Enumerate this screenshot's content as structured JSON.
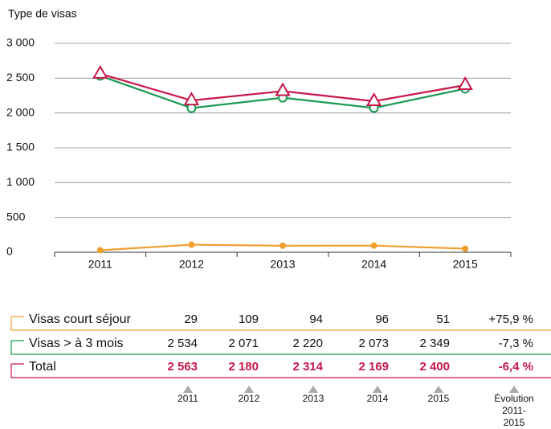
{
  "chart_data": {
    "type": "line",
    "title": "Type de visas",
    "categories": [
      "2011",
      "2012",
      "2013",
      "2014",
      "2015"
    ],
    "ylim": [
      0,
      3000
    ],
    "yticks": [
      0,
      500,
      {
        "value": 1000,
        "label": "1 000"
      },
      {
        "value": 1500,
        "label": "1 500"
      },
      {
        "value": 2000,
        "label": "2 000"
      },
      {
        "value": 2500,
        "label": "2 500"
      },
      {
        "value": 3000,
        "label": "3 000"
      }
    ],
    "grid": true,
    "series": [
      {
        "name": "Visas court séjour",
        "color": "#f0a030",
        "marker": "circle-filled",
        "values": [
          29,
          109,
          94,
          96,
          51
        ],
        "value_labels": [
          "29",
          "109",
          "94",
          "96",
          "51"
        ],
        "change_label": "+75,9 %"
      },
      {
        "name": "Visas > à 3 mois",
        "color": "#1a9a50",
        "marker": "circle-open",
        "values": [
          2534,
          2071,
          2220,
          2073,
          2349
        ],
        "value_labels": [
          "2 534",
          "2 071",
          "2 220",
          "2 073",
          "2 349"
        ],
        "change_label": "-7,3 %"
      },
      {
        "name": "Total",
        "color": "#c8174a",
        "marker": "triangle-open",
        "bold": true,
        "values": [
          2563,
          2180,
          2314,
          2169,
          2400
        ],
        "value_labels": [
          "2 563",
          "2 180",
          "2 314",
          "2 169",
          "2 400"
        ],
        "change_label": "-6,4 %"
      }
    ],
    "change_header": "Évolution 2011-2015"
  }
}
